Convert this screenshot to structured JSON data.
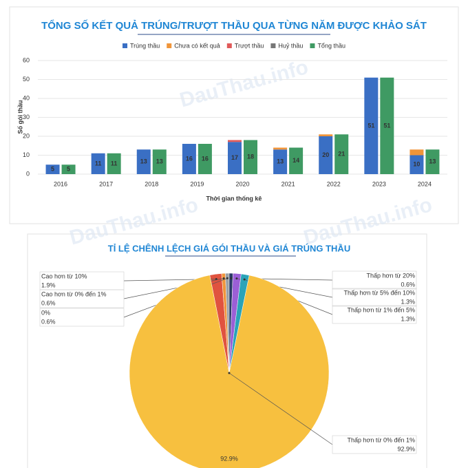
{
  "watermark": "DauThau.info",
  "chart_data": [
    {
      "type": "bar",
      "title": "TỔNG SỐ KẾT QUẢ TRÚNG/TRƯỢT THẦU QUA TỪNG NĂM ĐƯỢC KHẢO SÁT",
      "x_label": "Thời gian thống kê",
      "y_label": "Số gói thầu",
      "categories": [
        "2016",
        "2017",
        "2018",
        "2019",
        "2020",
        "2021",
        "2022",
        "2023",
        "2024"
      ],
      "series": [
        {
          "name": "Trúng thầu",
          "color": "#3a6fc4",
          "stack": 1,
          "labels": true,
          "values": [
            5,
            11,
            13,
            16,
            17,
            13,
            20,
            51,
            10
          ]
        },
        {
          "name": "Chưa có kết quả",
          "color": "#f0953a",
          "stack": 1,
          "labels": false,
          "values": [
            0,
            0,
            0,
            0,
            0,
            1,
            1,
            0,
            3
          ]
        },
        {
          "name": "Trượt thầu",
          "color": "#e05a5a",
          "stack": 1,
          "labels": false,
          "values": [
            0,
            0,
            0,
            0,
            1,
            0,
            0,
            0,
            0
          ]
        },
        {
          "name": "Huỷ thầu",
          "color": "#777777",
          "stack": 1,
          "labels": false,
          "values": [
            0,
            0,
            0,
            0,
            0,
            0,
            0,
            0,
            0
          ]
        },
        {
          "name": "Tổng thầu",
          "color": "#3f9a63",
          "stack": 2,
          "labels": true,
          "values": [
            5,
            11,
            13,
            16,
            18,
            14,
            21,
            51,
            13
          ]
        }
      ],
      "ylim": [
        0,
        60
      ],
      "yticks": [
        0,
        10,
        20,
        30,
        40,
        50,
        60
      ],
      "grid": true,
      "legend": "top"
    },
    {
      "type": "pie",
      "title": "TỈ LỆ CHÊNH LỆCH GIÁ GÓI THẦU VÀ GIÁ TRÚNG THẦU",
      "categories": [
        "Cao hơn từ 10%",
        "Cao hơn từ 0% đến 1%",
        "0%",
        "Thấp hơn từ 20%",
        "Thấp hơn từ 5% đến 10%",
        "Thấp hơn từ 1% đến 5%",
        "Thấp hơn từ 0% đến 1%"
      ],
      "values": [
        1.9,
        0.6,
        0.6,
        0.6,
        1.3,
        1.3,
        92.9
      ],
      "value_labels": [
        "1.9%",
        "0.6%",
        "0.6%",
        "0.6%",
        "1.3%",
        "1.3%",
        "92.9%"
      ],
      "colors": [
        "#e0533f",
        "#f0953a",
        "#9aa0a6",
        "#2b3a67",
        "#9b5fd6",
        "#2aa3b8",
        "#f7c03f"
      ]
    }
  ]
}
